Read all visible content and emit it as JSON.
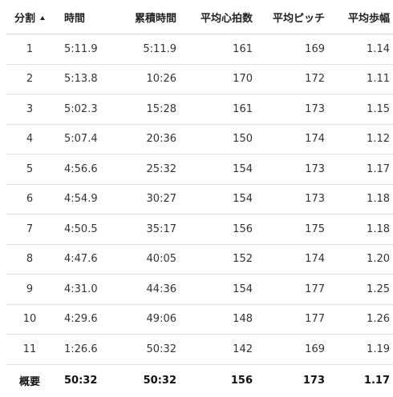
{
  "table": {
    "headers": {
      "split": "分割",
      "time": "時間",
      "cumulative_time": "累積時間",
      "avg_heart_rate": "平均心拍数",
      "avg_cadence": "平均ピッチ",
      "avg_stride": "平均歩幅"
    },
    "sort_icon": "sort-ascending-icon",
    "rows": [
      {
        "split": "1",
        "time": "5:11.9",
        "cumulative_time": "5:11.9",
        "avg_heart_rate": "161",
        "avg_cadence": "169",
        "avg_stride": "1.14"
      },
      {
        "split": "2",
        "time": "5:13.8",
        "cumulative_time": "10:26",
        "avg_heart_rate": "170",
        "avg_cadence": "172",
        "avg_stride": "1.11"
      },
      {
        "split": "3",
        "time": "5:02.3",
        "cumulative_time": "15:28",
        "avg_heart_rate": "161",
        "avg_cadence": "173",
        "avg_stride": "1.15"
      },
      {
        "split": "4",
        "time": "5:07.4",
        "cumulative_time": "20:36",
        "avg_heart_rate": "150",
        "avg_cadence": "174",
        "avg_stride": "1.12"
      },
      {
        "split": "5",
        "time": "4:56.6",
        "cumulative_time": "25:32",
        "avg_heart_rate": "154",
        "avg_cadence": "173",
        "avg_stride": "1.17"
      },
      {
        "split": "6",
        "time": "4:54.9",
        "cumulative_time": "30:27",
        "avg_heart_rate": "154",
        "avg_cadence": "173",
        "avg_stride": "1.18"
      },
      {
        "split": "7",
        "time": "4:50.5",
        "cumulative_time": "35:17",
        "avg_heart_rate": "156",
        "avg_cadence": "175",
        "avg_stride": "1.18"
      },
      {
        "split": "8",
        "time": "4:47.6",
        "cumulative_time": "40:05",
        "avg_heart_rate": "152",
        "avg_cadence": "174",
        "avg_stride": "1.20"
      },
      {
        "split": "9",
        "time": "4:31.0",
        "cumulative_time": "44:36",
        "avg_heart_rate": "154",
        "avg_cadence": "177",
        "avg_stride": "1.25"
      },
      {
        "split": "10",
        "time": "4:29.6",
        "cumulative_time": "49:06",
        "avg_heart_rate": "148",
        "avg_cadence": "177",
        "avg_stride": "1.26"
      },
      {
        "split": "11",
        "time": "1:26.6",
        "cumulative_time": "50:32",
        "avg_heart_rate": "142",
        "avg_cadence": "169",
        "avg_stride": "1.19"
      }
    ],
    "summary": {
      "split": "概要",
      "time": "50:32",
      "cumulative_time": "50:32",
      "avg_heart_rate": "156",
      "avg_cadence": "173",
      "avg_stride": "1.17"
    }
  }
}
